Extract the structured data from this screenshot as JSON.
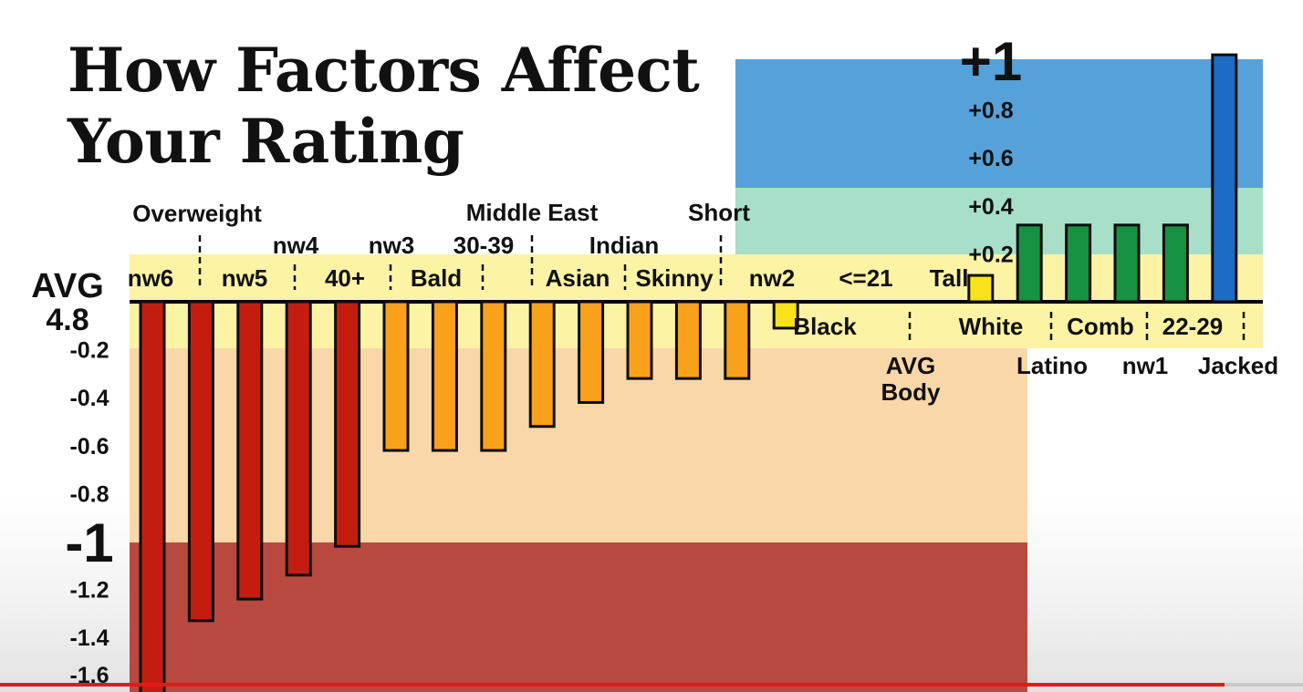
{
  "title": "How Factors Affect Your Rating",
  "video": {
    "progress_fraction": 0.94
  },
  "colors": {
    "band_blue": "#57a1da",
    "band_green": "#a8dfc8",
    "band_yellow": "#fcf3a5",
    "band_peach": "#f9d7a8",
    "band_red": "#b94940",
    "bar_red": "#c41d10",
    "bar_orange": "#f9a11b",
    "bar_yellow": "#f8e21a",
    "bar_green": "#179142",
    "bar_blue": "#1c6cc6"
  },
  "chart_data": {
    "type": "bar",
    "title": "How Factors Affect Your Rating",
    "baseline_label": [
      "AVG",
      "4.8"
    ],
    "ylim": [
      -1.66,
      1.06
    ],
    "y_ticks": [
      {
        "v": 1,
        "label": "+1"
      },
      {
        "v": 0.8,
        "label": "+0.8"
      },
      {
        "v": 0.6,
        "label": "+0.6"
      },
      {
        "v": 0.4,
        "label": "+0.4"
      },
      {
        "v": 0.2,
        "label": "+0.2"
      },
      {
        "v": -0.2,
        "label": "-0.2"
      },
      {
        "v": -0.4,
        "label": "-0.4"
      },
      {
        "v": -0.6,
        "label": "-0.6"
      },
      {
        "v": -0.8,
        "label": "-0.8"
      },
      {
        "v": -1,
        "label": "-1"
      },
      {
        "v": -1.2,
        "label": "-1.2"
      },
      {
        "v": -1.4,
        "label": "-1.4"
      },
      {
        "v": -1.6,
        "label": "-1.6"
      }
    ],
    "bars": [
      {
        "value": -1.65,
        "color": "bar_red",
        "labels": [
          "nw6"
        ]
      },
      {
        "value": -1.33,
        "color": "bar_red",
        "labels": [
          "nw5",
          "Overweight"
        ]
      },
      {
        "value": -1.24,
        "color": "bar_red",
        "labels": []
      },
      {
        "value": -1.14,
        "color": "bar_red",
        "labels": [
          "nw4"
        ]
      },
      {
        "value": -1.02,
        "color": "bar_red",
        "labels": [
          "40+"
        ]
      },
      {
        "value": -0.62,
        "color": "bar_orange",
        "labels": [
          "nw3",
          "Bald"
        ]
      },
      {
        "value": -0.62,
        "color": "bar_orange",
        "labels": [
          "30-39"
        ]
      },
      {
        "value": -0.62,
        "color": "bar_orange",
        "labels": []
      },
      {
        "value": -0.52,
        "color": "bar_orange",
        "labels": [
          "Middle East",
          "Asian"
        ]
      },
      {
        "value": -0.42,
        "color": "bar_orange",
        "labels": [
          "Indian"
        ]
      },
      {
        "value": -0.32,
        "color": "bar_orange",
        "labels": [
          "Skinny"
        ]
      },
      {
        "value": -0.32,
        "color": "bar_orange",
        "labels": []
      },
      {
        "value": -0.32,
        "color": "bar_orange",
        "labels": [
          "Short"
        ]
      },
      {
        "value": -0.11,
        "color": "bar_yellow",
        "labels": [
          "nw2",
          "Black"
        ]
      },
      {
        "value": 0,
        "color": "bar_yellow",
        "labels": [
          "<=21"
        ]
      },
      {
        "value": 0,
        "color": "bar_yellow",
        "labels": [
          "AVG Body"
        ]
      },
      {
        "value": 0,
        "color": "bar_yellow",
        "labels": [
          "White"
        ]
      },
      {
        "value": 0.11,
        "color": "bar_yellow",
        "labels": [
          "Tall"
        ]
      },
      {
        "value": 0.32,
        "color": "bar_green",
        "labels": [
          "Latino"
        ]
      },
      {
        "value": 0.32,
        "color": "bar_green",
        "labels": [
          "Comb"
        ]
      },
      {
        "value": 0.32,
        "color": "bar_green",
        "labels": [
          "nw1"
        ]
      },
      {
        "value": 0.32,
        "color": "bar_green",
        "labels": [
          "22-29"
        ]
      },
      {
        "value": 1.03,
        "color": "bar_blue",
        "labels": [
          "Jacked"
        ]
      }
    ],
    "category_labels": [
      "Overweight",
      "nw4",
      "nw3",
      "30-39",
      "Middle East",
      "Indian",
      "Short",
      "nw6",
      "nw5",
      "40+",
      "Bald",
      "Asian",
      "Skinny",
      "nw2",
      "<=21",
      "Tall",
      "Black",
      "White",
      "Comb",
      "22-29",
      "AVG Body",
      "Latino",
      "nw1",
      "Jacked"
    ]
  }
}
